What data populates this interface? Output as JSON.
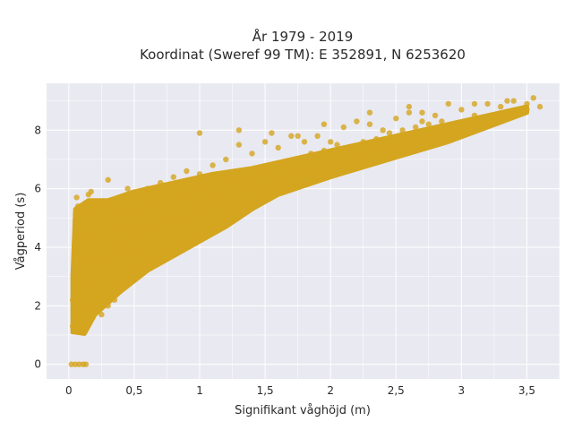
{
  "chart_data": {
    "type": "scatter",
    "title_line1": "År 1979 - 2019",
    "title_line2": "Koordinat (Sweref 99 TM): E 352891, N 6253620",
    "xlabel": "Signifikant våghöjd (m)",
    "ylabel": "Vågperiod (s)",
    "xlim": [
      -0.17,
      3.75
    ],
    "ylim": [
      -0.5,
      9.6
    ],
    "xticks": [
      0,
      0.5,
      1,
      1.5,
      2,
      2.5,
      3,
      3.5
    ],
    "xtick_labels": [
      "0",
      "0,5",
      "1",
      "1,5",
      "2",
      "2,5",
      "3",
      "3,5"
    ],
    "yticks": [
      0,
      2,
      4,
      6,
      8
    ],
    "ytick_labels": [
      "0",
      "2",
      "4",
      "6",
      "8"
    ],
    "grid": true,
    "point_color": "#d4a51f",
    "background_color": "#e9e9f1",
    "grid_color": "#ffffff",
    "points": [
      [
        0.02,
        0
      ],
      [
        0.05,
        0
      ],
      [
        0.08,
        0
      ],
      [
        0.11,
        0
      ],
      [
        0.13,
        0
      ],
      [
        0.03,
        1.3
      ],
      [
        0.05,
        1.6
      ],
      [
        0.07,
        1.2
      ],
      [
        0.1,
        1.1
      ],
      [
        0.12,
        1.3
      ],
      [
        0.03,
        2.2
      ],
      [
        0.05,
        2.8
      ],
      [
        0.04,
        3.5
      ],
      [
        0.06,
        4.2
      ],
      [
        0.05,
        4.9
      ],
      [
        0.07,
        5.4
      ],
      [
        0.06,
        5.7
      ],
      [
        0.09,
        2
      ],
      [
        0.1,
        2.7
      ],
      [
        0.11,
        3.6
      ],
      [
        0.12,
        4.4
      ],
      [
        0.13,
        5.1
      ],
      [
        0.15,
        5.8
      ],
      [
        0.17,
        5.9
      ],
      [
        0.15,
        1.5
      ],
      [
        0.2,
        1.8
      ],
      [
        0.25,
        1.7
      ],
      [
        0.3,
        2
      ],
      [
        0.35,
        2.2
      ],
      [
        0.4,
        2.6
      ],
      [
        0.45,
        2.9
      ],
      [
        0.5,
        3.1
      ],
      [
        0.55,
        3.3
      ],
      [
        0.6,
        3.4
      ],
      [
        0.7,
        3.7
      ],
      [
        0.8,
        3.9
      ],
      [
        0.9,
        4.2
      ],
      [
        1,
        4.4
      ],
      [
        1.1,
        4.6
      ],
      [
        1.2,
        4.9
      ],
      [
        1.3,
        5.2
      ],
      [
        1.4,
        5.5
      ],
      [
        1.5,
        5.7
      ],
      [
        1.6,
        5.9
      ],
      [
        1.7,
        6
      ],
      [
        1.8,
        6.2
      ],
      [
        1.9,
        6.3
      ],
      [
        2,
        6.5
      ],
      [
        2.1,
        6.6
      ],
      [
        2.2,
        6.8
      ],
      [
        2.3,
        6.9
      ],
      [
        2.4,
        7.1
      ],
      [
        2.5,
        7.2
      ],
      [
        2.6,
        7.3
      ],
      [
        2.7,
        7.5
      ],
      [
        2.8,
        7.6
      ],
      [
        2.9,
        7.7
      ],
      [
        3,
        7.9
      ],
      [
        3.1,
        8
      ],
      [
        3.2,
        8.2
      ],
      [
        3.3,
        8.4
      ],
      [
        3.4,
        8.5
      ],
      [
        3.5,
        8.7
      ],
      [
        3.55,
        9.1
      ],
      [
        0.2,
        4.5
      ],
      [
        0.25,
        5.5
      ],
      [
        0.3,
        6.3
      ],
      [
        0.35,
        5.2
      ],
      [
        0.4,
        4.8
      ],
      [
        0.45,
        6
      ],
      [
        0.5,
        5.3
      ],
      [
        0.55,
        4.6
      ],
      [
        0.6,
        6
      ],
      [
        0.65,
        5.4
      ],
      [
        0.7,
        6.2
      ],
      [
        0.75,
        5
      ],
      [
        0.8,
        6.4
      ],
      [
        0.85,
        5.7
      ],
      [
        0.9,
        6.6
      ],
      [
        0.95,
        5.3
      ],
      [
        1,
        6.5
      ],
      [
        1.05,
        6
      ],
      [
        1.1,
        6.8
      ],
      [
        1.15,
        5.5
      ],
      [
        1.2,
        7
      ],
      [
        1.25,
        6.3
      ],
      [
        1.3,
        7.5
      ],
      [
        1.35,
        6.2
      ],
      [
        1.4,
        7.2
      ],
      [
        1.45,
        6.7
      ],
      [
        1.5,
        7.6
      ],
      [
        1.55,
        6.5
      ],
      [
        1.6,
        7.4
      ],
      [
        1.65,
        6.9
      ],
      [
        1.7,
        7.8
      ],
      [
        1.75,
        7
      ],
      [
        1.8,
        7.6
      ],
      [
        1.85,
        7.2
      ],
      [
        1.9,
        7.8
      ],
      [
        1.95,
        7.3
      ],
      [
        2,
        7.6
      ],
      [
        2.05,
        7.5
      ],
      [
        2.1,
        8.1
      ],
      [
        2.15,
        7.4
      ],
      [
        2.2,
        8.3
      ],
      [
        2.25,
        7.6
      ],
      [
        2.3,
        8.2
      ],
      [
        2.35,
        7.7
      ],
      [
        2.4,
        8
      ],
      [
        2.45,
        7.9
      ],
      [
        2.5,
        8.4
      ],
      [
        2.55,
        8
      ],
      [
        2.6,
        8.6
      ],
      [
        2.65,
        8.1
      ],
      [
        2.7,
        8.3
      ],
      [
        2.75,
        8.2
      ],
      [
        2.8,
        8.5
      ],
      [
        2.85,
        8.3
      ],
      [
        2.9,
        8.9
      ],
      [
        3,
        8.7
      ],
      [
        3.1,
        8.5
      ],
      [
        3.2,
        8.9
      ],
      [
        3.3,
        8.8
      ],
      [
        3.4,
        9
      ],
      [
        3.5,
        8.9
      ],
      [
        3.6,
        8.8
      ],
      [
        0.25,
        3.6
      ],
      [
        0.35,
        4
      ],
      [
        0.45,
        3.9
      ],
      [
        0.55,
        4.4
      ],
      [
        0.65,
        4.6
      ],
      [
        0.75,
        4.8
      ],
      [
        0.85,
        5
      ],
      [
        0.95,
        5.3
      ],
      [
        1.05,
        5.4
      ],
      [
        1.15,
        5.7
      ],
      [
        1.25,
        5.6
      ],
      [
        1.35,
        5.9
      ],
      [
        1.45,
        6.1
      ],
      [
        1.55,
        6.2
      ],
      [
        1.65,
        6.3
      ],
      [
        1.75,
        6.5
      ],
      [
        1.85,
        6.6
      ],
      [
        1.95,
        6.8
      ],
      [
        2.05,
        6.9
      ],
      [
        2.15,
        7
      ],
      [
        2.25,
        7.1
      ],
      [
        2.35,
        7.3
      ],
      [
        2.45,
        7.4
      ],
      [
        2.55,
        7.5
      ],
      [
        2.65,
        7.7
      ],
      [
        2.75,
        7.8
      ],
      [
        2.85,
        7.9
      ],
      [
        2.95,
        8.1
      ],
      [
        3.05,
        8.2
      ],
      [
        3.15,
        8.3
      ],
      [
        3.25,
        8.5
      ],
      [
        1.0,
        7.9
      ],
      [
        1.3,
        8
      ],
      [
        1.55,
        7.9
      ],
      [
        1.75,
        7.8
      ],
      [
        1.95,
        8.2
      ],
      [
        2.3,
        8.6
      ],
      [
        2.6,
        8.8
      ],
      [
        2.7,
        8.6
      ],
      [
        3.1,
        8.9
      ],
      [
        3.35,
        9
      ]
    ]
  }
}
